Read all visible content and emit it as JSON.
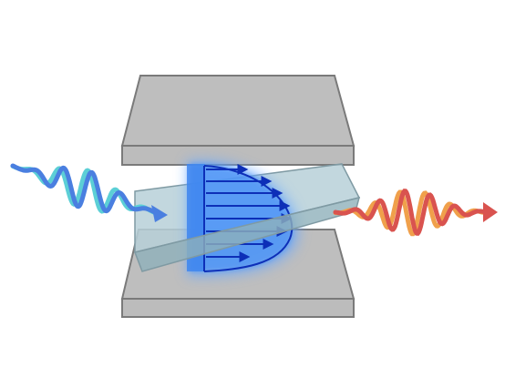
{
  "colors": {
    "plate_fill": "#bebebe",
    "plate_edge": "#7a7a7a",
    "slab_fill": "#a9c6cf",
    "slab_edge": "#7f9aa3",
    "field_glow": "#6aa8ff",
    "field_core": "#2f7cf0",
    "flow_arrows": "#0d2fb8",
    "input_wave_a": "#4a7fe0",
    "input_wave_b": "#5ccfd6",
    "output_wave_a": "#d9534f",
    "output_wave_b": "#f0a04b"
  },
  "icons": {
    "incoming": "wavy-arrow-right",
    "outgoing": "wavy-arrow-right"
  }
}
